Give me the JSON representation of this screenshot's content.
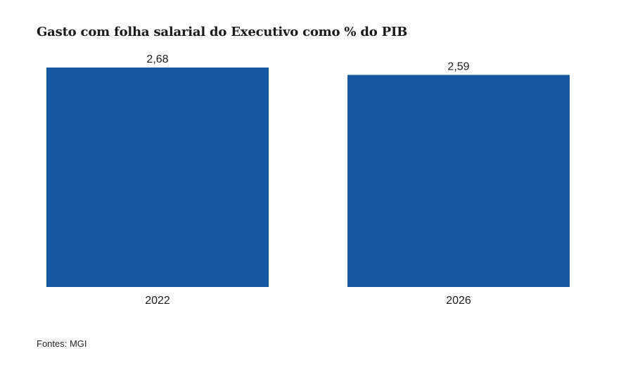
{
  "chart_data": {
    "type": "bar",
    "title": "Gasto com folha salarial do Executivo como % do PIB",
    "categories": [
      "2022",
      "2026"
    ],
    "values": [
      2.68,
      2.59
    ],
    "value_labels": [
      "2,68",
      "2,59"
    ],
    "xlabel": "",
    "ylabel": "",
    "ylim": [
      0,
      2.68
    ],
    "grid": false,
    "legend": "none",
    "bar_color": "#1558a0"
  },
  "source": "Fontes: MGI"
}
